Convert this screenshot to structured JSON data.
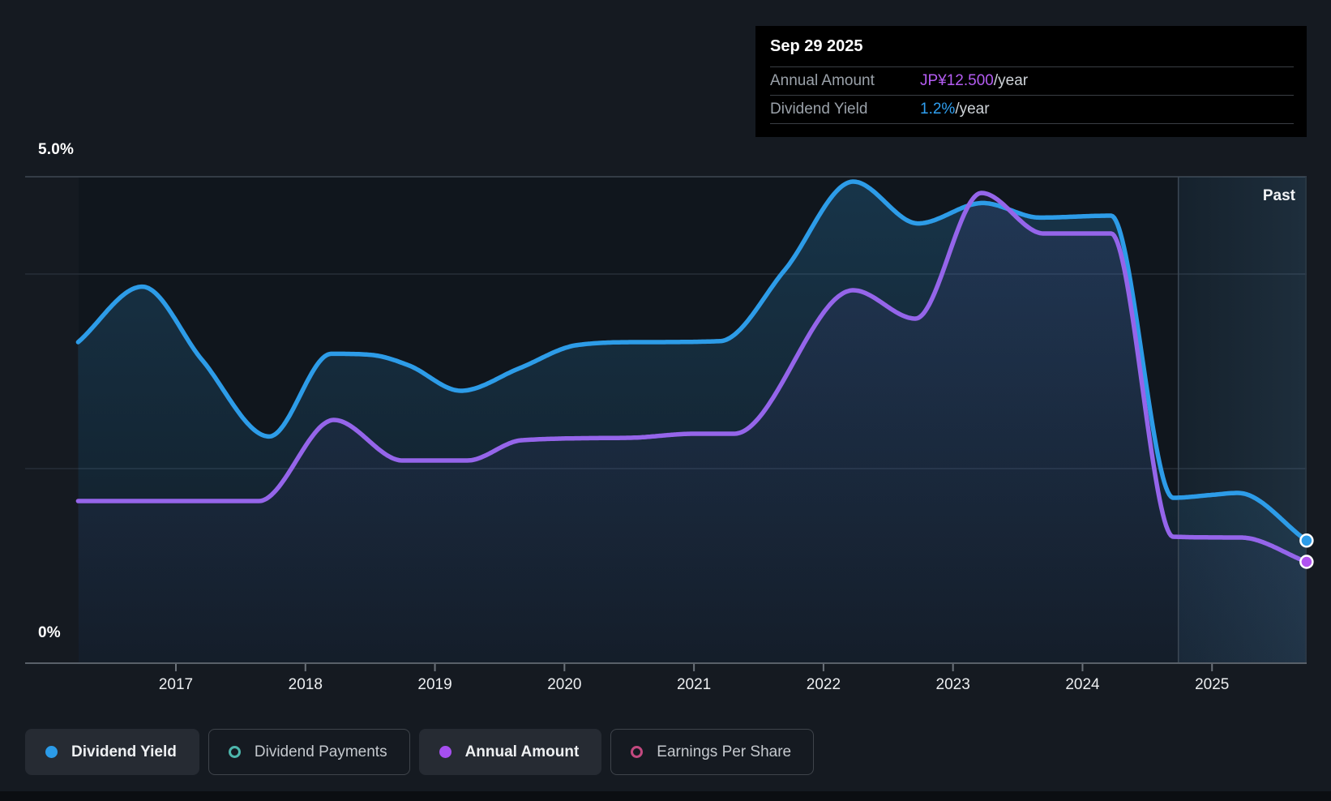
{
  "tooltip": {
    "date": "Sep 29 2025",
    "rows": [
      {
        "label": "Annual Amount",
        "value": "JP¥12.500",
        "suffix": "/year",
        "value_color": "#b45cf2"
      },
      {
        "label": "Dividend Yield",
        "value": "1.2%",
        "suffix": "/year",
        "value_color": "#2f9ff0"
      }
    ]
  },
  "axis": {
    "y_top_label": "5.0%",
    "y_bottom_label": "0%",
    "years": [
      "2017",
      "2018",
      "2019",
      "2020",
      "2021",
      "2022",
      "2023",
      "2024",
      "2025"
    ]
  },
  "past_label": "Past",
  "legend": {
    "items": [
      {
        "label": "Dividend Yield",
        "marker": "dot",
        "color": "#2b9be8",
        "active": true
      },
      {
        "label": "Dividend Payments",
        "marker": "ring",
        "color": "#4db6ac",
        "active": false
      },
      {
        "label": "Annual Amount",
        "marker": "dot",
        "color": "#a64ff0",
        "active": true
      },
      {
        "label": "Earnings Per Share",
        "marker": "ring",
        "color": "#c2497f",
        "active": false
      }
    ]
  },
  "chart_data": {
    "type": "area",
    "title": "Dividend history",
    "x_axis": {
      "tick_years": [
        2017,
        2018,
        2019,
        2020,
        2021,
        2022,
        2023,
        2024,
        2025
      ],
      "range": [
        2016.245,
        2025.73
      ]
    },
    "y_axis": {
      "unit": "%",
      "min": 0,
      "max": 5,
      "top_label": "5.0%",
      "bottom_label": "0%",
      "gridlines_pct": [
        5.0,
        4.0,
        2.0,
        0.0
      ]
    },
    "past_divider_year": 2024.74,
    "legend_position": "bottom",
    "series": [
      {
        "name": "Dividend Yield",
        "color": "#2d9ce8",
        "unit": "%",
        "end_value_label": "1.2%/year",
        "points": [
          [
            2016.245,
            3.3
          ],
          [
            2016.74,
            3.87
          ],
          [
            2017.2,
            3.12
          ],
          [
            2017.72,
            2.33
          ],
          [
            2018.2,
            3.18
          ],
          [
            2018.5,
            3.17
          ],
          [
            2018.8,
            3.06
          ],
          [
            2019.2,
            2.8
          ],
          [
            2019.65,
            3.03
          ],
          [
            2020.1,
            3.27
          ],
          [
            2020.6,
            3.3
          ],
          [
            2021.2,
            3.31
          ],
          [
            2021.7,
            4.04
          ],
          [
            2022.23,
            4.95
          ],
          [
            2022.73,
            4.52
          ],
          [
            2023.23,
            4.73
          ],
          [
            2023.67,
            4.58
          ],
          [
            2024.22,
            4.6
          ],
          [
            2024.7,
            1.7
          ],
          [
            2025.0,
            1.73
          ],
          [
            2025.2,
            1.75
          ],
          [
            2025.73,
            1.26
          ]
        ]
      },
      {
        "name": "Annual Amount",
        "color": "#9565ea",
        "unit": "JP¥/year",
        "end_value_label": "JP¥12.500/year",
        "jpy_per_pct_scale": 12,
        "points": [
          [
            2016.245,
            20
          ],
          [
            2017.0,
            20
          ],
          [
            2017.64,
            20
          ],
          [
            2018.22,
            30
          ],
          [
            2018.75,
            25
          ],
          [
            2019.25,
            25
          ],
          [
            2019.67,
            27.5
          ],
          [
            2020.5,
            27.8
          ],
          [
            2021.0,
            28.3
          ],
          [
            2021.31,
            28.3
          ],
          [
            2022.23,
            46
          ],
          [
            2022.71,
            42.5
          ],
          [
            2023.22,
            58
          ],
          [
            2023.7,
            53
          ],
          [
            2024.22,
            53
          ],
          [
            2024.7,
            15.6
          ],
          [
            2025.22,
            15.5
          ],
          [
            2025.73,
            12.5
          ]
        ]
      }
    ]
  }
}
